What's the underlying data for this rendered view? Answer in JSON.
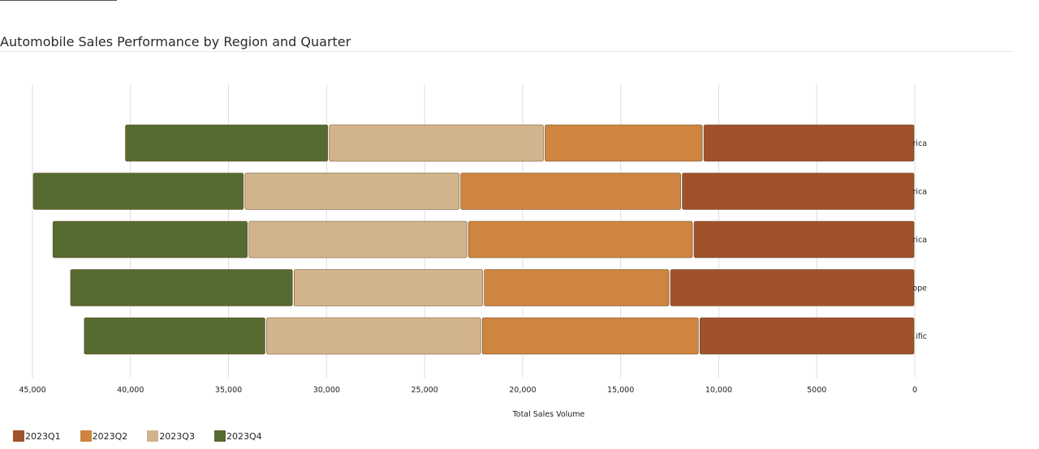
{
  "chart_data": {
    "type": "bar",
    "orientation": "horizontal",
    "stacked": true,
    "x_reversed": true,
    "title": "Automobile Sales Performance by Region and Quarter",
    "xlabel": "Total Sales Volume",
    "ylabel": "",
    "xlim": [
      0,
      45000
    ],
    "x_ticks": [
      0,
      5000,
      10000,
      15000,
      20000,
      25000,
      30000,
      35000,
      40000,
      45000
    ],
    "x_tick_labels": [
      "0",
      "5000",
      "10,000",
      "15,000",
      "20,000",
      "25,000",
      "30,000",
      "35,000",
      "40,000",
      "45,000"
    ],
    "grid": true,
    "legend_position": "bottom-left",
    "category_labels_visible": [
      "rica",
      "rica",
      "rica",
      "ope",
      "ific"
    ],
    "categories": [
      "North America",
      "South America",
      "Central America",
      "Europe",
      "Asia Pacific"
    ],
    "series": [
      {
        "name": "2023Q1",
        "color": "#a0522d",
        "values": [
          10800,
          11900,
          11300,
          12500,
          11000
        ]
      },
      {
        "name": "2023Q2",
        "color": "#cd853f",
        "values": [
          8100,
          11300,
          11500,
          9500,
          11100
        ]
      },
      {
        "name": "2023Q3",
        "color": "#d2b48c",
        "values": [
          11000,
          11000,
          11200,
          9700,
          11000
        ]
      },
      {
        "name": "2023Q4",
        "color": "#556b2f",
        "values": [
          10400,
          10800,
          10000,
          11400,
          9300
        ]
      }
    ]
  }
}
